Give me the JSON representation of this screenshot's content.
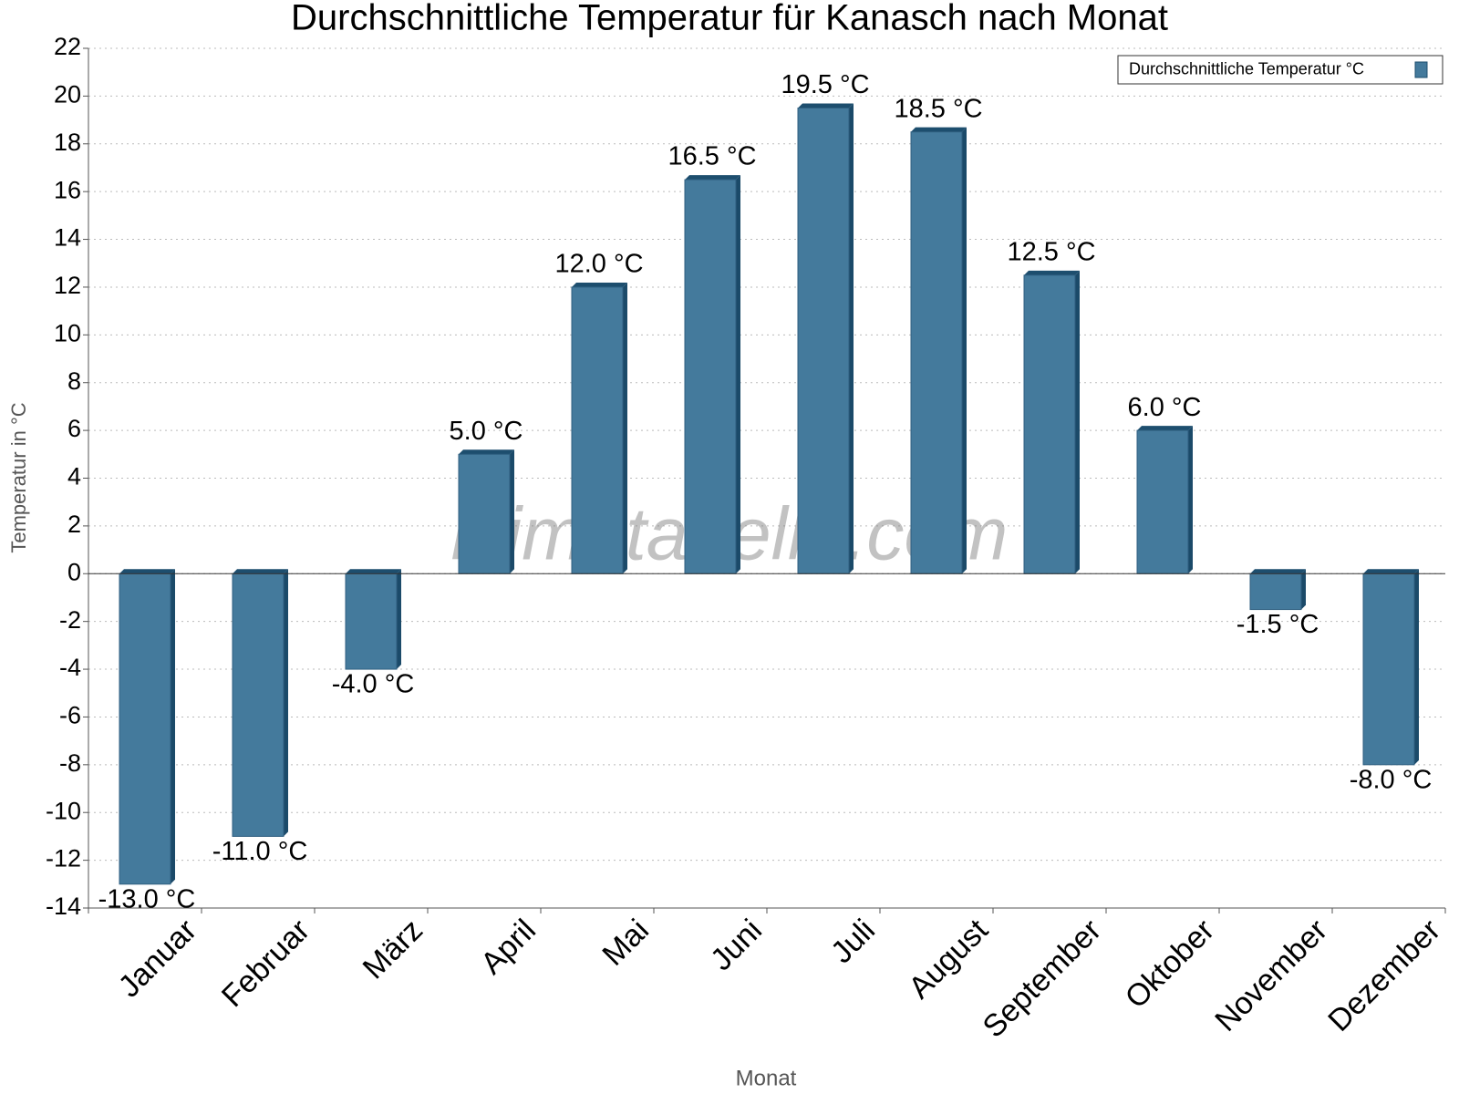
{
  "chart_data": {
    "type": "bar",
    "title": "Durchschnittliche Temperatur für Kanasch nach Monat",
    "x_label": "Monat",
    "y_label": "Temperatur in °C",
    "watermark": "klimatabelle.com",
    "categories": [
      "Januar",
      "Februar",
      "März",
      "April",
      "Mai",
      "Juni",
      "Juli",
      "August",
      "September",
      "Oktober",
      "November",
      "Dezember"
    ],
    "series": [
      {
        "name": "Durchschnittliche Temperatur °C",
        "color": "#447a9c",
        "values": [
          -13.0,
          -11.0,
          -4.0,
          5.0,
          12.0,
          16.5,
          19.5,
          18.5,
          12.5,
          6.0,
          -1.5,
          -8.0
        ],
        "value_labels": [
          "-13.0 °C",
          "-11.0 °C",
          "-4.0 °C",
          "5.0 °C",
          "12.0 °C",
          "16.5 °C",
          "19.5 °C",
          "18.5 °C",
          "12.5 °C",
          "6.0 °C",
          "-1.5 °C",
          "-8.0 °C"
        ]
      }
    ],
    "ylim": [
      -14,
      22
    ],
    "yticks": [
      -14,
      -12,
      -10,
      -8,
      -6,
      -4,
      -2,
      0,
      2,
      4,
      6,
      8,
      10,
      12,
      14,
      16,
      18,
      20,
      22
    ],
    "grid": true,
    "legend": "upper right"
  }
}
